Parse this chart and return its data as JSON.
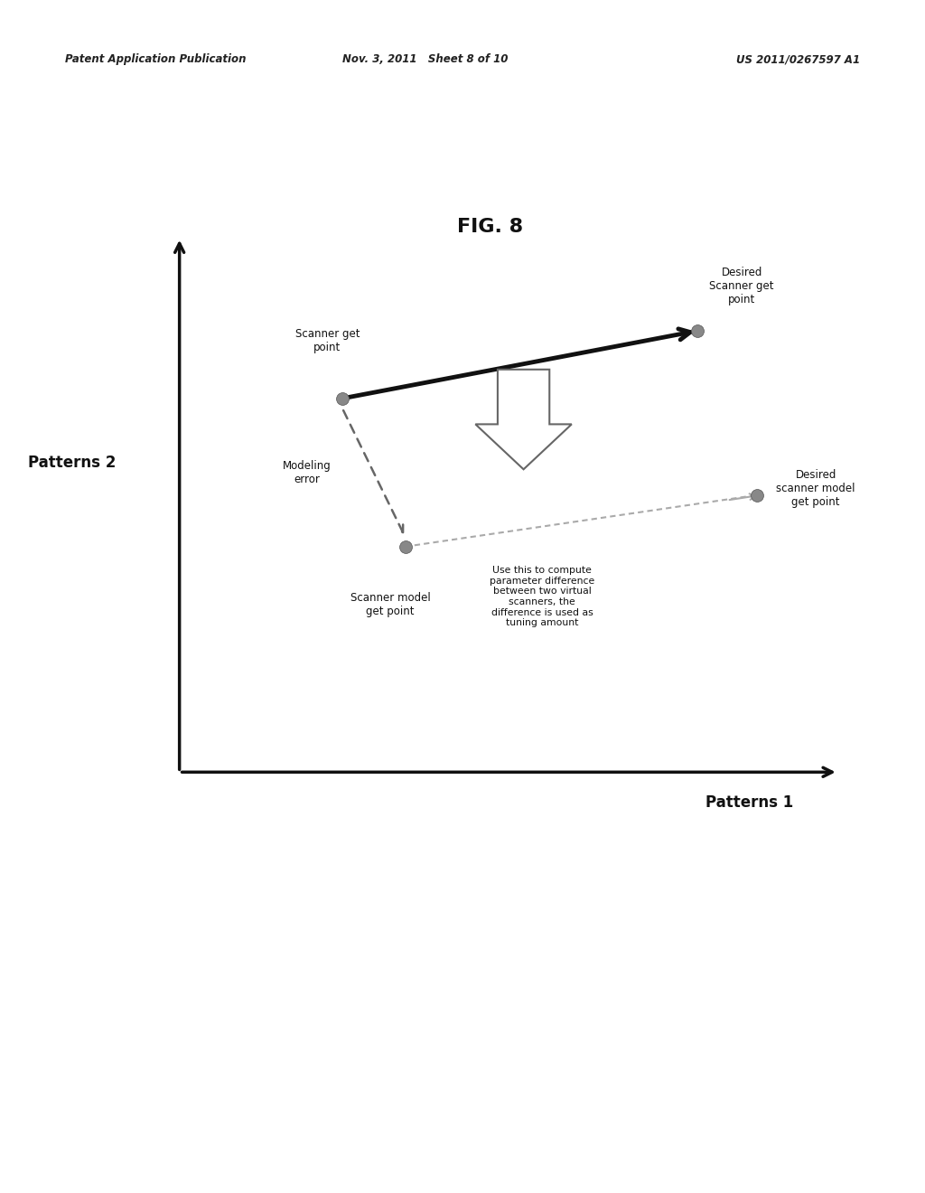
{
  "title": "FIG. 8",
  "header_left": "Patent Application Publication",
  "header_center": "Nov. 3, 2011   Sheet 8 of 10",
  "header_right": "US 2011/0267597 A1",
  "xlabel": "Patterns 1",
  "ylabel": "Patterns 2",
  "background_color": "#ffffff",
  "diagram_bg_color": "#d8d8d8",
  "scanner_get_point": [
    0.3,
    0.65
  ],
  "desired_scanner_get_point": [
    0.78,
    0.755
  ],
  "scanner_model_get_point": [
    0.385,
    0.42
  ],
  "desired_scanner_model_get_point": [
    0.86,
    0.5
  ],
  "label_scanner_get": "Scanner get\npoint",
  "label_desired_scanner_get": "Desired\nScanner get\npoint",
  "label_modeling_error": "Modeling\nerror",
  "label_scanner_model_get": "Scanner model\nget point",
  "label_desired_scanner_model_get": "Desired\nscanner model\nget point",
  "label_use_this": "Use this to compute\nparameter difference\nbetween two virtual\nscanners, the\ndifference is used as\ntuning amount",
  "point_color": "#888888",
  "text_color": "#111111",
  "header_color": "#222222"
}
